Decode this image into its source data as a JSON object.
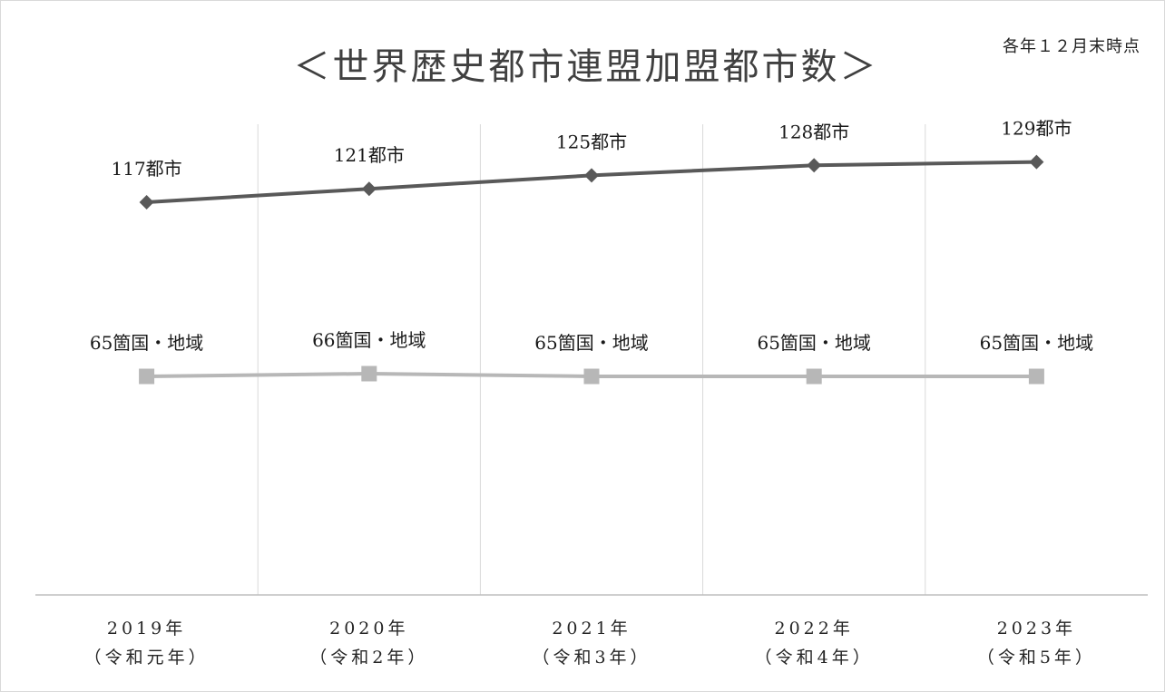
{
  "chart_data": {
    "type": "line",
    "title": "＜世界歴史都市連盟加盟都市数＞",
    "note": "各年１２月末時点",
    "categories": [
      {
        "year": "2019年",
        "era": "（令和元年）"
      },
      {
        "year": "2020年",
        "era": "（令和2年）"
      },
      {
        "year": "2021年",
        "era": "（令和3年）"
      },
      {
        "year": "2022年",
        "era": "（令和4年）"
      },
      {
        "year": "2023年",
        "era": "（令和5年）"
      }
    ],
    "series": [
      {
        "values": [
          117,
          121,
          125,
          128,
          129
        ],
        "labels": [
          "117都市",
          "121都市",
          "125都市",
          "128都市",
          "129都市"
        ],
        "marker": "diamond",
        "color": "#595959"
      },
      {
        "values": [
          65,
          66,
          65,
          65,
          65
        ],
        "labels": [
          "65箇国・地域",
          "66箇国・地域",
          "65箇国・地域",
          "65箇国・地域",
          "65箇国・地域"
        ],
        "marker": "square",
        "color": "#b7b7b7"
      }
    ],
    "grid": {
      "vertical": true,
      "horizontal": false,
      "color": "#d9d9d9"
    },
    "axis_color": "#bfbfbf"
  }
}
